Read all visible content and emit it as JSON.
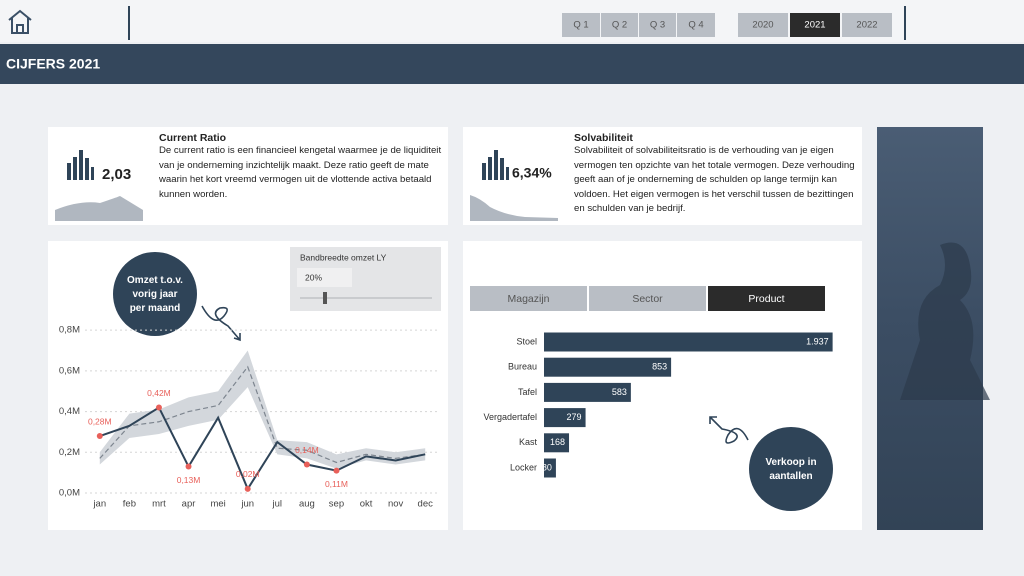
{
  "nav": {
    "quarters": [
      "Q 1",
      "Q 2",
      "Q 3",
      "Q 4"
    ],
    "years": [
      {
        "label": "2020",
        "selected": false
      },
      {
        "label": "2021",
        "selected": true
      },
      {
        "label": "2022",
        "selected": false
      }
    ]
  },
  "header": {
    "title": "CIJFERS 2021"
  },
  "kpis": [
    {
      "title": "Current Ratio",
      "value": "2,03",
      "description": "De current ratio is een financieel kengetal waarmee je de liquiditeit van je onderneming inzichtelijk maakt. Deze ratio geeft de mate waarin het kort vreemd vermogen uit de vlottende activa betaald kunnen worden."
    },
    {
      "title": "Solvabiliteit",
      "value": "6,34%",
      "description": "Solvabiliteit of solvabiliteitsratio is de verhouding van je eigen vermogen ten opzichte van het totale vermogen. Deze verhouding geeft aan of je onderneming de schulden op lange termijn kan voldoen. Het eigen vermogen is het verschil tussen de bezittingen en schulden van je bedrijf."
    }
  ],
  "line_chart": {
    "type": "line",
    "annotation": "Omzet t.o.v. vorig jaar per maand",
    "slider": {
      "label": "Bandbreedte omzet LY",
      "value": "20%"
    },
    "categories": [
      "jan",
      "feb",
      "mrt",
      "apr",
      "mei",
      "jun",
      "jul",
      "aug",
      "sep",
      "okt",
      "nov",
      "dec"
    ],
    "series": [
      {
        "color": "#2f4458",
        "values": [
          0.28,
          0.33,
          0.42,
          0.13,
          0.37,
          0.02,
          0.25,
          0.14,
          0.11,
          0.18,
          0.16,
          0.19
        ],
        "value_labels": [
          "0,28M",
          null,
          "0,42M",
          "0,13M",
          null,
          "0,02M",
          null,
          "0,14M",
          "0,11M",
          null,
          null,
          null
        ]
      },
      {
        "color": "#7d858f",
        "dashed": true,
        "values": [
          0.17,
          0.33,
          0.35,
          0.4,
          0.43,
          0.62,
          0.22,
          0.21,
          0.15,
          0.19,
          0.17,
          0.19
        ]
      }
    ],
    "band": {
      "color": "#d3d7dc",
      "lower": [
        0.14,
        0.27,
        0.29,
        0.33,
        0.36,
        0.52,
        0.19,
        0.17,
        0.12,
        0.16,
        0.14,
        0.16
      ],
      "upper": [
        0.2,
        0.39,
        0.41,
        0.47,
        0.5,
        0.7,
        0.26,
        0.25,
        0.19,
        0.22,
        0.2,
        0.22
      ]
    },
    "label_color": "#e8605a",
    "ylim": [
      0,
      0.85
    ],
    "yticks": [
      {
        "value": 0,
        "label": "0,0M"
      },
      {
        "value": 0.2,
        "label": "0,2M"
      },
      {
        "value": 0.4,
        "label": "0,4M"
      },
      {
        "value": 0.6,
        "label": "0,6M"
      },
      {
        "value": 0.8,
        "label": "0,8M"
      }
    ],
    "grid": true
  },
  "bar_chart": {
    "type": "bar",
    "orientation": "horizontal",
    "tabs": [
      {
        "label": "Magazijn",
        "selected": false
      },
      {
        "label": "Sector",
        "selected": false
      },
      {
        "label": "Product",
        "selected": true
      }
    ],
    "categories": [
      "Stoel",
      "Bureau",
      "Tafel",
      "Vergadertafel",
      "Kast",
      "Locker"
    ],
    "values": [
      1937,
      853,
      583,
      279,
      168,
      80
    ],
    "value_labels": [
      "1.937",
      "853",
      "583",
      "279",
      "168",
      "80"
    ],
    "color": "#2f4458",
    "xlim": [
      0,
      2000
    ],
    "annotation": "Verkoop in aantallen"
  }
}
